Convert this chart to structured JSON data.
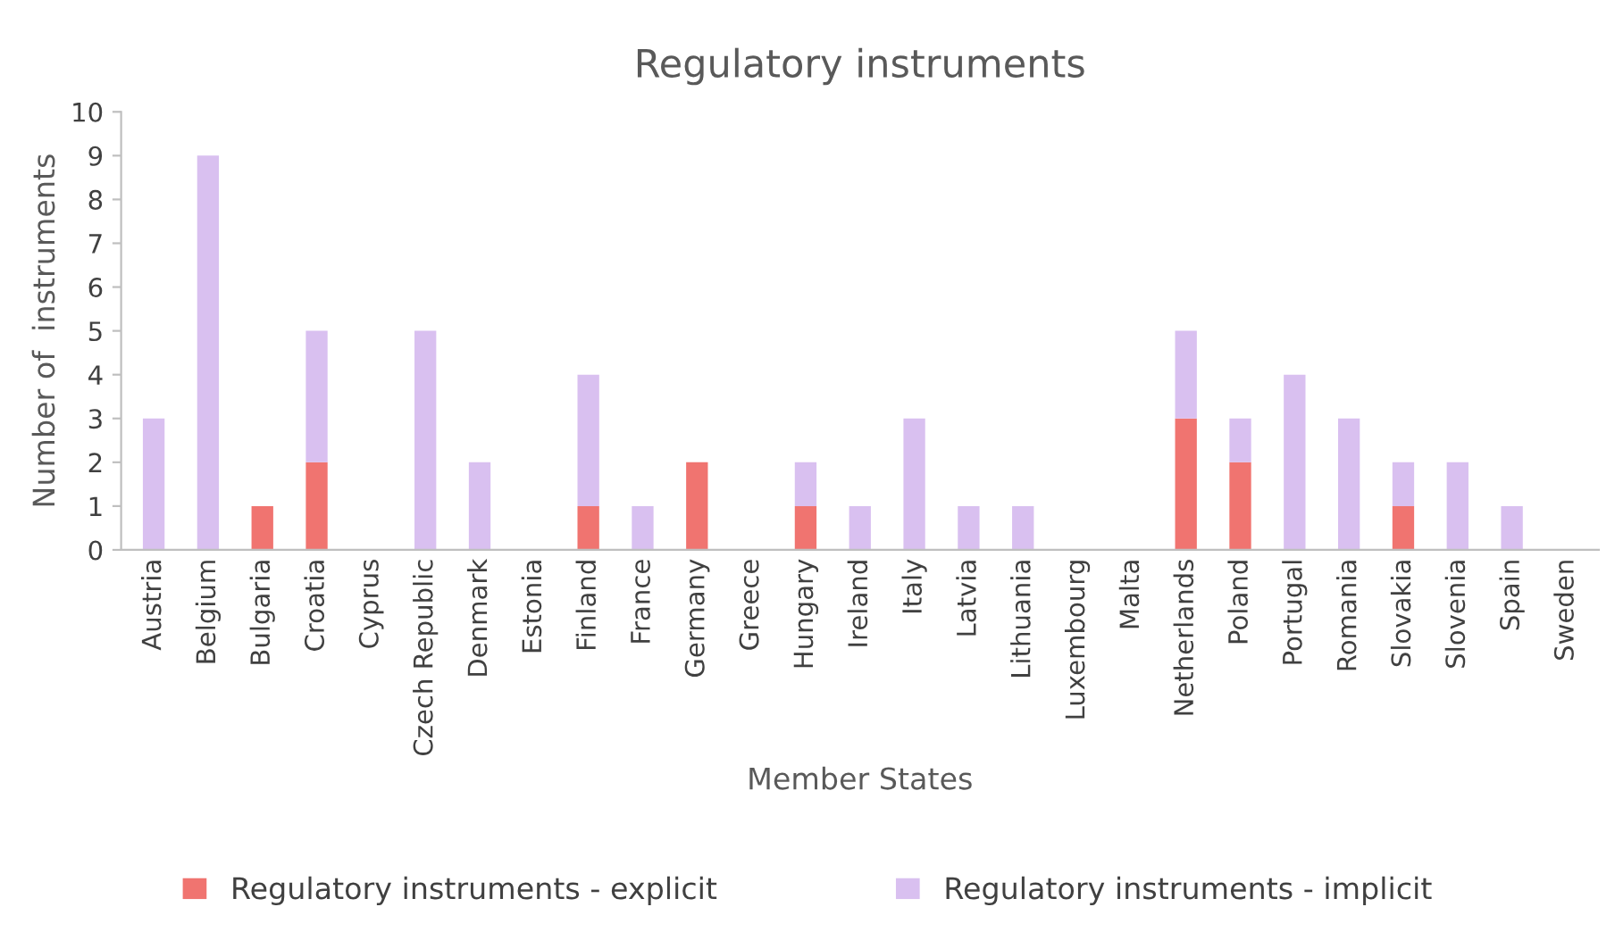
{
  "chart_data": {
    "type": "bar",
    "title": "Regulatory instruments",
    "xlabel": "Member States",
    "ylabel": "Number of  instruments",
    "categories": [
      "Austria",
      "Belgium",
      "Bulgaria",
      "Croatia",
      "Cyprus",
      "Czech Republic",
      "Denmark",
      "Estonia",
      "Finland",
      "France",
      "Germany",
      "Greece",
      "Hungary",
      "Ireland",
      "Italy",
      "Latvia",
      "Lithuania",
      "Luxembourg",
      "Malta",
      "Netherlands",
      "Poland",
      "Portugal",
      "Romania",
      "Slovakia",
      "Slovenia",
      "Spain",
      "Sweden"
    ],
    "stacked": true,
    "series": [
      {
        "name": "Regulatory instruments - explicit",
        "color": "#f07470",
        "values": [
          0,
          0,
          1,
          2,
          0,
          0,
          0,
          0,
          1,
          0,
          2,
          0,
          1,
          0,
          0,
          0,
          0,
          0,
          0,
          3,
          2,
          0,
          0,
          1,
          0,
          0,
          0
        ]
      },
      {
        "name": "Regulatory instruments - implicit",
        "color": "#d9c0f0",
        "values": [
          3,
          9,
          0,
          3,
          0,
          5,
          2,
          0,
          3,
          1,
          0,
          0,
          1,
          1,
          3,
          1,
          1,
          0,
          0,
          2,
          1,
          4,
          3,
          1,
          2,
          1,
          0
        ]
      }
    ],
    "ylim": [
      0,
      10
    ],
    "yticks": [
      0,
      1,
      2,
      3,
      4,
      5,
      6,
      7,
      8,
      9,
      10
    ],
    "grid": false,
    "legend": "bottom"
  }
}
